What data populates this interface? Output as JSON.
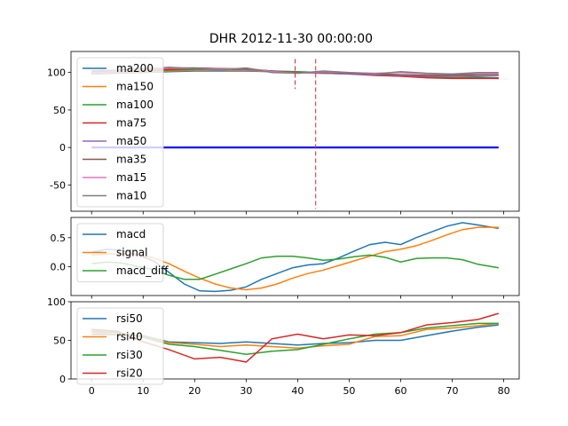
{
  "title": "DHR 2012-11-30 00:00:00",
  "chart_data": [
    {
      "type": "line",
      "panel": "moving-averages",
      "xlim": [
        -4,
        83
      ],
      "ylim": [
        -85,
        128
      ],
      "yticks": [
        -50,
        0,
        50,
        100
      ],
      "xticks": [
        0,
        10,
        20,
        30,
        40,
        50,
        60,
        70,
        80
      ],
      "legend_position": "left",
      "series": [
        {
          "name": "ma200",
          "color": "#1f77b4",
          "x": [
            0,
            5,
            10,
            15,
            20,
            25,
            30,
            35,
            40,
            45,
            50,
            55,
            60,
            65,
            70,
            75,
            79
          ],
          "y": [
            98,
            99,
            100,
            101,
            102,
            102,
            102,
            101,
            100,
            100,
            99,
            98,
            97,
            96,
            95,
            94,
            93
          ]
        },
        {
          "name": "ma150",
          "color": "#ff7f0e",
          "x": [
            0,
            5,
            10,
            15,
            20,
            25,
            30,
            35,
            40,
            45,
            50,
            55,
            60,
            65,
            70,
            75,
            79
          ],
          "y": [
            99,
            100,
            101,
            102,
            103,
            103,
            103,
            101,
            100,
            100,
            99,
            98,
            96,
            95,
            94,
            93,
            92
          ]
        },
        {
          "name": "ma100",
          "color": "#2ca02c",
          "x": [
            0,
            5,
            10,
            15,
            20,
            25,
            30,
            35,
            40,
            45,
            50,
            55,
            60,
            65,
            70,
            75,
            79
          ],
          "y": [
            100,
            101,
            102,
            103,
            104,
            104,
            104,
            102,
            101,
            100,
            99,
            97,
            95,
            94,
            93,
            93,
            92
          ]
        },
        {
          "name": "ma75",
          "color": "#d62728",
          "x": [
            0,
            5,
            10,
            15,
            20,
            25,
            30,
            35,
            40,
            45,
            50,
            55,
            60,
            65,
            70,
            75,
            79
          ],
          "y": [
            101,
            102,
            103,
            104,
            105,
            105,
            104,
            102,
            100,
            99,
            98,
            96,
            95,
            93,
            92,
            92,
            92
          ]
        },
        {
          "name": "ma50",
          "color": "#9467bd",
          "x": [
            0,
            5,
            10,
            15,
            20,
            25,
            30,
            35,
            40,
            45,
            50,
            55,
            60,
            65,
            70,
            75,
            79
          ],
          "y": [
            102,
            103,
            104,
            106,
            106,
            105,
            104,
            102,
            100,
            99,
            98,
            97,
            96,
            95,
            95,
            96,
            96
          ]
        },
        {
          "name": "ma35",
          "color": "#8c564b",
          "x": [
            0,
            5,
            10,
            15,
            20,
            25,
            30,
            35,
            40,
            45,
            50,
            55,
            60,
            65,
            70,
            75,
            79
          ],
          "y": [
            102,
            103,
            105,
            106,
            106,
            105,
            105,
            102,
            100,
            100,
            99,
            98,
            97,
            96,
            97,
            97,
            97
          ]
        },
        {
          "name": "ma15",
          "color": "#e377c2",
          "x": [
            0,
            5,
            10,
            15,
            20,
            25,
            30,
            35,
            40,
            45,
            50,
            55,
            60,
            65,
            70,
            75,
            79
          ],
          "y": [
            99,
            101,
            104,
            106,
            105,
            104,
            106,
            101,
            99,
            101,
            100,
            99,
            100,
            98,
            98,
            99,
            99
          ]
        },
        {
          "name": "ma10",
          "color": "#7f7f7f",
          "x": [
            0,
            5,
            10,
            15,
            20,
            25,
            30,
            35,
            40,
            45,
            50,
            55,
            60,
            65,
            70,
            75,
            79
          ],
          "y": [
            98,
            100,
            104,
            107,
            105,
            103,
            106,
            100,
            99,
            102,
            100,
            98,
            101,
            99,
            98,
            100,
            100
          ]
        },
        {
          "name": "",
          "color": "#0000ff",
          "x": [
            0,
            79
          ],
          "y": [
            0,
            0
          ]
        }
      ],
      "vlines": [
        {
          "x": 39.5,
          "ymin": 78,
          "ymax": 118,
          "color": "#d62728"
        },
        {
          "x": 43.5,
          "ymin": -82,
          "ymax": 118,
          "color": "#d62728"
        }
      ]
    },
    {
      "type": "line",
      "panel": "macd",
      "xlim": [
        -4,
        83
      ],
      "ylim": [
        -0.5,
        0.85
      ],
      "yticks": [
        0.0,
        0.5
      ],
      "ytick_labels": [
        "0.0",
        "0.5"
      ],
      "xticks": [
        0,
        10,
        20,
        30,
        40,
        50,
        60,
        70,
        80
      ],
      "legend_position": "left",
      "series": [
        {
          "name": "macd",
          "color": "#1f77b4",
          "x": [
            0,
            3,
            6,
            9,
            12,
            15,
            18,
            21,
            24,
            27,
            30,
            33,
            36,
            39,
            42,
            45,
            48,
            51,
            54,
            57,
            60,
            63,
            66,
            69,
            72,
            75,
            79
          ],
          "y": [
            0.25,
            0.3,
            0.28,
            0.2,
            0.1,
            -0.1,
            -0.3,
            -0.42,
            -0.43,
            -0.41,
            -0.35,
            -0.22,
            -0.12,
            -0.02,
            0.03,
            0.05,
            0.15,
            0.27,
            0.38,
            0.42,
            0.38,
            0.5,
            0.6,
            0.7,
            0.76,
            0.72,
            0.66
          ]
        },
        {
          "name": "signal",
          "color": "#ff7f0e",
          "x": [
            0,
            3,
            6,
            9,
            12,
            15,
            18,
            21,
            24,
            27,
            30,
            33,
            36,
            39,
            42,
            45,
            48,
            51,
            54,
            57,
            60,
            63,
            66,
            69,
            72,
            75,
            79
          ],
          "y": [
            0.2,
            0.22,
            0.22,
            0.2,
            0.15,
            0.05,
            -0.08,
            -0.2,
            -0.3,
            -0.37,
            -0.4,
            -0.37,
            -0.3,
            -0.2,
            -0.12,
            -0.06,
            0.02,
            0.1,
            0.18,
            0.26,
            0.3,
            0.36,
            0.45,
            0.55,
            0.64,
            0.68,
            0.68
          ]
        },
        {
          "name": "macd_diff",
          "color": "#2ca02c",
          "x": [
            0,
            3,
            6,
            9,
            12,
            15,
            18,
            21,
            24,
            27,
            30,
            33,
            36,
            39,
            42,
            45,
            48,
            51,
            54,
            57,
            60,
            63,
            66,
            69,
            72,
            75,
            79
          ],
          "y": [
            0.05,
            0.08,
            0.06,
            0.0,
            -0.05,
            -0.15,
            -0.22,
            -0.22,
            -0.13,
            -0.04,
            0.05,
            0.15,
            0.18,
            0.18,
            0.15,
            0.11,
            0.13,
            0.17,
            0.2,
            0.16,
            0.08,
            0.14,
            0.15,
            0.15,
            0.12,
            0.04,
            -0.02
          ]
        }
      ]
    },
    {
      "type": "line",
      "panel": "rsi",
      "xlim": [
        -4,
        83
      ],
      "ylim": [
        0,
        100
      ],
      "yticks": [
        0,
        50,
        100
      ],
      "xticks": [
        0,
        10,
        20,
        30,
        40,
        50,
        60,
        70,
        80
      ],
      "legend_position": "left",
      "series": [
        {
          "name": "rsi50",
          "color": "#1f77b4",
          "x": [
            0,
            5,
            10,
            15,
            20,
            25,
            30,
            35,
            40,
            45,
            50,
            55,
            60,
            65,
            70,
            75,
            79
          ],
          "y": [
            58,
            57,
            56,
            48,
            47,
            46,
            48,
            46,
            44,
            46,
            47,
            50,
            50,
            56,
            62,
            67,
            70
          ]
        },
        {
          "name": "rsi40",
          "color": "#ff7f0e",
          "x": [
            0,
            5,
            10,
            15,
            20,
            25,
            30,
            35,
            40,
            45,
            50,
            55,
            60,
            65,
            70,
            75,
            79
          ],
          "y": [
            60,
            58,
            55,
            47,
            45,
            42,
            44,
            42,
            40,
            43,
            45,
            55,
            56,
            64,
            66,
            69,
            72
          ]
        },
        {
          "name": "rsi30",
          "color": "#2ca02c",
          "x": [
            0,
            5,
            10,
            15,
            20,
            25,
            30,
            35,
            40,
            45,
            50,
            55,
            60,
            65,
            70,
            75,
            79
          ],
          "y": [
            62,
            60,
            54,
            45,
            42,
            37,
            32,
            36,
            38,
            45,
            52,
            58,
            60,
            66,
            69,
            72,
            72
          ]
        },
        {
          "name": "rsi20",
          "color": "#d62728",
          "x": [
            0,
            5,
            10,
            15,
            20,
            25,
            30,
            35,
            40,
            45,
            50,
            55,
            60,
            65,
            70,
            75,
            79
          ],
          "y": [
            64,
            62,
            48,
            38,
            26,
            28,
            22,
            52,
            58,
            52,
            57,
            56,
            60,
            70,
            73,
            77,
            85
          ]
        }
      ]
    }
  ]
}
